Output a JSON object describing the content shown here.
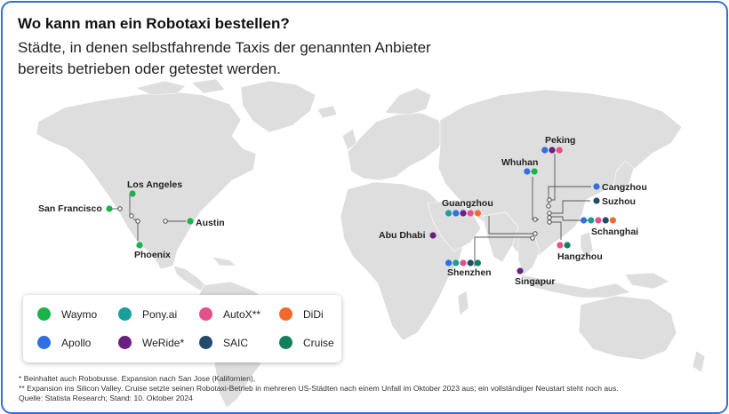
{
  "header": {
    "title": "Wo kann man ein Robotaxi bestellen?",
    "subtitle": "Städte, in denen selbstfahrende Taxis der genannten Anbieter bereits betrieben oder getestet werden."
  },
  "colors": {
    "frame": "#2f6fdb",
    "land": "#dedede",
    "leader": "#555555"
  },
  "providers": [
    {
      "name": "Waymo",
      "color": "#19b34a"
    },
    {
      "name": "Pony.ai",
      "color": "#17a09a"
    },
    {
      "name": "AutoX**",
      "color": "#e4508a"
    },
    {
      "name": "DiDi",
      "color": "#f26a30"
    },
    {
      "name": "Apollo",
      "color": "#2f6fe0"
    },
    {
      "name": "WeRide*",
      "color": "#6a2080"
    },
    {
      "name": "SAIC",
      "color": "#234a6b"
    },
    {
      "name": "Cruise",
      "color": "#12805a"
    }
  ],
  "cities": [
    {
      "name": "San Francisco",
      "providers": [
        "Waymo"
      ]
    },
    {
      "name": "Los Angeles",
      "providers": [
        "Waymo"
      ]
    },
    {
      "name": "Phoenix",
      "providers": [
        "Waymo"
      ]
    },
    {
      "name": "Austin",
      "providers": [
        "Waymo"
      ]
    },
    {
      "name": "Abu Dhabi",
      "providers": [
        "WeRide*"
      ]
    },
    {
      "name": "Guangzhou",
      "providers": [
        "Pony.ai",
        "Apollo",
        "WeRide*",
        "AutoX**",
        "DiDi"
      ]
    },
    {
      "name": "Shenzhen",
      "providers": [
        "Apollo",
        "Pony.ai",
        "AutoX**",
        "SAIC",
        "Cruise"
      ]
    },
    {
      "name": "Whuhan",
      "providers": [
        "Apollo",
        "Waymo"
      ]
    },
    {
      "name": "Peking",
      "providers": [
        "Apollo",
        "WeRide*",
        "AutoX**"
      ]
    },
    {
      "name": "Cangzhou",
      "providers": [
        "Apollo"
      ]
    },
    {
      "name": "Suzhou",
      "providers": [
        "SAIC"
      ]
    },
    {
      "name": "Schanghai",
      "providers": [
        "Apollo",
        "Pony.ai",
        "AutoX**",
        "SAIC",
        "DiDi"
      ]
    },
    {
      "name": "Hangzhou",
      "providers": [
        "AutoX**",
        "Cruise"
      ]
    },
    {
      "name": "Singapur",
      "providers": [
        "WeRide*"
      ]
    }
  ],
  "notes": [
    "* Beinhaltet auch Robobusse. Expansion nach San Jose (Kalifornien),",
    "** Expansion ins Silicon Valley. Cruise setzte seinen Robotaxi-Betrieb in mehreren US-Städten nach einem Unfall im Oktober 2023 aus; ein vollständiger Neustart steht noch aus.",
    "Quelle: Statista Research; Stand: 10. Oktober 2024"
  ]
}
